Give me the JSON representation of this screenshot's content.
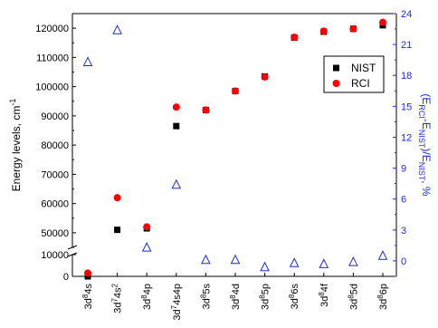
{
  "chart_data": {
    "type": "scatter",
    "categories": [
      {
        "base": "3d",
        "sup": "8",
        "rest": "4s"
      },
      {
        "base": "3d",
        "sup": "7",
        "rest": "4s",
        "sup2": "2"
      },
      {
        "base": "3d",
        "sup": "8",
        "rest": "4p"
      },
      {
        "base": "3d",
        "sup": "7",
        "rest": "4s4p"
      },
      {
        "base": "3d",
        "sup": "8",
        "rest": "5s"
      },
      {
        "base": "3d",
        "sup": "8",
        "rest": "4d"
      },
      {
        "base": "3d",
        "sup": "8",
        "rest": "5p"
      },
      {
        "base": "3d",
        "sup": "8",
        "rest": "6s"
      },
      {
        "base": "3d",
        "sup": "8",
        "rest": "4f"
      },
      {
        "base": "3d",
        "sup": "8",
        "rest": "5d"
      },
      {
        "base": "3d",
        "sup": "8",
        "rest": "6p"
      }
    ],
    "series": [
      {
        "name": "NIST",
        "axis": "left",
        "marker": "square",
        "color": "#000000",
        "values": [
          0,
          51000,
          51500,
          86500,
          92000,
          98500,
          103500,
          116800,
          118800,
          119800,
          121000
        ]
      },
      {
        "name": "RCI",
        "axis": "left",
        "marker": "circle",
        "color": "#ff0000",
        "values": [
          1500,
          62000,
          52000,
          93000,
          92000,
          98500,
          103300,
          116900,
          119000,
          119800,
          122000
        ]
      },
      {
        "axis": "right",
        "marker": "open-triangle",
        "color": "#1f2bd6",
        "values": [
          19.3,
          22.4,
          1.3,
          7.4,
          0.1,
          0.1,
          -0.6,
          -0.2,
          -0.3,
          -0.1,
          0.5
        ]
      }
    ],
    "left_axis": {
      "label_main": "Energy levels, cm",
      "label_sup": "-1",
      "lower_segment": {
        "range": [
          0,
          10000
        ],
        "ticks": [
          0,
          10000
        ]
      },
      "upper_segment": {
        "range": [
          45000,
          125000
        ],
        "ticks": [
          50000,
          60000,
          70000,
          80000,
          90000,
          100000,
          110000,
          120000
        ]
      }
    },
    "right_axis": {
      "label": "(E_RCI-E_NIST)/E_NIST, %",
      "range": [
        -1.5,
        24
      ],
      "ticks": [
        0,
        3,
        6,
        9,
        12,
        15,
        18,
        21,
        24
      ],
      "color": "#1f2bd6"
    },
    "legend": {
      "placement": "top-right",
      "entries": [
        "NIST",
        "RCI"
      ]
    }
  }
}
